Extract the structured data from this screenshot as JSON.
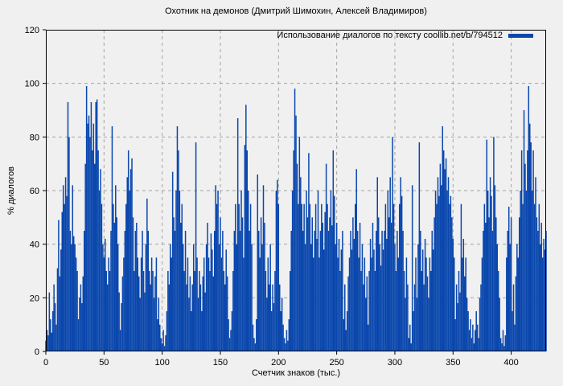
{
  "title": "Охотник на демонов (Дмитрий Шимохин, Алексей Владимиров)",
  "legend": {
    "label": "Использование диалогов по тексту coollib.net/b/794512",
    "position": "top-right"
  },
  "x_axis": {
    "label": "Счетчик знаков (тыс.)",
    "ticks": [
      0,
      50,
      100,
      150,
      200,
      250,
      300,
      350,
      400
    ]
  },
  "y_axis": {
    "label": "% диалогов",
    "ticks": [
      0,
      20,
      40,
      60,
      80,
      100,
      120
    ]
  },
  "colors": {
    "background": "#f0f0f0",
    "bar": "#0a47ad",
    "grid": "#a5a5a5",
    "frame": "#000000",
    "text": "#000000"
  },
  "chart_data": {
    "type": "bar",
    "title": "Охотник на демонов (Дмитрий Шимохин, Алексей Владимиров)",
    "series_name": "Использование диалогов по тексту coollib.net/b/794512",
    "xlabel": "Счетчик знаков (тыс.)",
    "ylabel": "% диалогов",
    "xlim": [
      0,
      430
    ],
    "ylim": [
      0,
      120
    ],
    "grid": true,
    "grid_style": "dashed",
    "legend_position": "top-right",
    "bar_color": "#0a47ad",
    "bar_style": "impulses",
    "x_start": 0,
    "x_step": 1,
    "values": [
      4,
      8,
      6,
      22,
      12,
      7,
      15,
      25,
      18,
      10,
      31,
      49,
      28,
      38,
      52,
      62,
      55,
      65,
      58,
      93,
      80,
      45,
      40,
      62,
      43,
      40,
      35,
      30,
      12,
      20,
      25,
      18,
      28,
      45,
      70,
      99,
      85,
      88,
      80,
      93,
      75,
      85,
      70,
      93,
      94,
      75,
      60,
      68,
      55,
      40,
      35,
      42,
      30,
      25,
      35,
      30,
      45,
      84,
      55,
      48,
      62,
      50,
      40,
      22,
      8,
      18,
      28,
      35,
      45,
      55,
      65,
      75,
      60,
      68,
      72,
      50,
      30,
      45,
      48,
      35,
      28,
      20,
      35,
      45,
      30,
      22,
      40,
      57,
      45,
      30,
      25,
      35,
      30,
      20,
      28,
      35,
      12,
      20,
      10,
      5,
      3,
      8,
      2,
      6,
      15,
      30,
      25,
      40,
      35,
      67,
      50,
      45,
      60,
      84,
      75,
      60,
      48,
      55,
      40,
      30,
      45,
      25,
      35,
      20,
      28,
      15,
      25,
      40,
      30,
      78,
      35,
      20,
      30,
      25,
      15,
      28,
      35,
      22,
      40,
      48,
      35,
      30,
      44,
      38,
      28,
      45,
      62,
      55,
      60,
      40,
      50,
      35,
      45,
      30,
      25,
      38,
      28,
      12,
      5,
      8,
      15,
      30,
      45,
      55,
      40,
      87,
      55,
      45,
      60,
      50,
      35,
      77,
      92,
      75,
      60,
      45,
      55,
      40,
      10,
      5,
      3,
      12,
      66,
      45,
      35,
      50,
      40,
      62,
      48,
      30,
      20,
      35,
      25,
      40,
      15,
      25,
      18,
      30,
      60,
      64,
      55,
      25,
      15,
      20,
      10,
      5,
      3,
      8,
      4,
      12,
      30,
      45,
      60,
      75,
      98,
      88,
      70,
      55,
      80,
      65,
      55,
      45,
      55,
      40,
      60,
      50,
      74,
      55,
      40,
      50,
      35,
      45,
      55,
      42,
      60,
      35,
      45,
      55,
      48,
      38,
      52,
      70,
      55,
      45,
      50,
      60,
      47,
      75,
      58,
      40,
      48,
      35,
      42,
      30,
      38,
      45,
      12,
      25,
      8,
      15,
      28,
      35,
      45,
      38,
      50,
      42,
      55,
      68,
      45,
      35,
      48,
      30,
      40,
      25,
      35,
      20,
      28,
      10,
      30,
      42,
      35,
      48,
      38,
      30,
      45,
      65,
      50,
      40,
      32,
      45,
      38,
      45,
      55,
      42,
      60,
      50,
      65,
      48,
      80,
      55,
      40,
      30,
      45,
      35,
      55,
      65,
      58,
      45,
      30,
      20,
      35,
      25,
      5,
      10,
      3,
      62,
      15,
      25,
      35,
      20,
      40,
      78,
      45,
      30,
      38,
      25,
      42,
      35,
      28,
      20,
      35,
      30,
      45,
      38,
      50,
      60,
      55,
      65,
      58,
      70,
      62,
      84,
      75,
      68,
      72,
      60,
      65,
      55,
      58,
      50,
      42,
      35,
      12,
      25,
      18,
      30,
      22,
      55,
      35,
      42,
      28,
      35,
      20,
      15,
      8,
      12,
      5,
      10,
      3,
      8,
      15,
      10,
      5,
      20,
      25,
      35,
      45,
      55,
      48,
      79,
      60,
      50,
      65,
      58,
      45,
      80,
      62,
      50,
      40,
      30,
      20,
      5,
      3,
      8,
      2,
      6,
      35,
      45,
      54,
      40,
      50,
      15,
      25,
      10,
      28,
      40,
      35,
      50,
      60,
      75,
      55,
      90,
      70,
      60,
      75,
      99,
      85,
      78,
      60,
      75,
      55,
      65,
      50,
      45,
      55,
      40,
      48,
      35,
      42,
      38,
      45
    ]
  }
}
